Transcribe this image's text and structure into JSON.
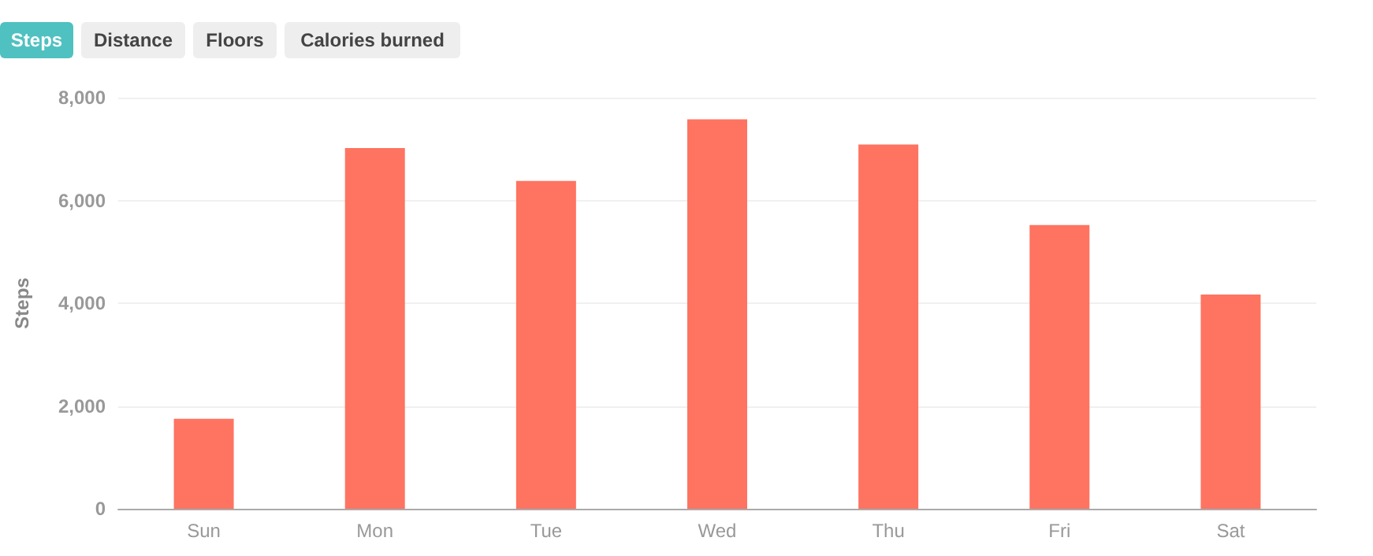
{
  "chart_data": {
    "type": "bar",
    "ylabel": "Steps",
    "annotations": [
      "Steps",
      "Distance",
      "Floors",
      "Calories burned"
    ],
    "categories": [
      "Sun",
      "Mon",
      "Tue",
      "Wed",
      "Thu",
      "Fri",
      "Sat"
    ],
    "values": [
      1750,
      7020,
      6380,
      7580,
      7090,
      5520,
      4170
    ],
    "color": "#ff7361",
    "ylim": [
      0,
      8000
    ],
    "yticks": [
      0,
      {
        "value": 2000,
        "label": "2,000"
      },
      {
        "value": 4000,
        "label": "4,000"
      },
      {
        "value": 6000,
        "label": "6,000"
      },
      {
        "value": 8000,
        "label": "8,000"
      }
    ],
    "grid": "y"
  }
}
